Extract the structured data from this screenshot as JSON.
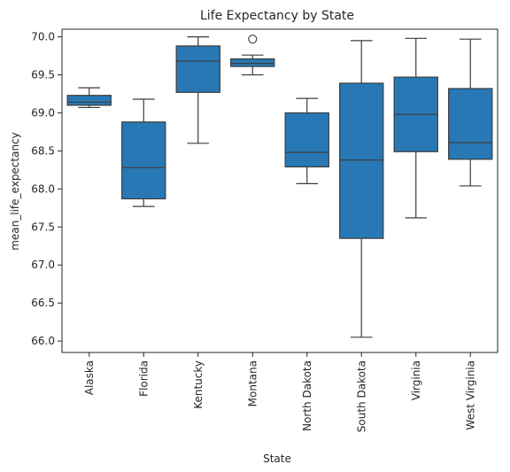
{
  "chart_data": {
    "type": "box",
    "title": "Life Expectancy by State",
    "xlabel": "State",
    "ylabel": "mean_life_expectancy",
    "ylim": [
      65.85,
      70.1
    ],
    "yticks": [
      "66.0",
      "66.5",
      "67.0",
      "67.5",
      "68.0",
      "68.5",
      "69.0",
      "69.5",
      "70.0"
    ],
    "box_color": "#2878b5",
    "line_color": "#3d3d3d",
    "grid": false,
    "categories": [
      "Alaska",
      "Florida",
      "Kentucky",
      "Montana",
      "North Dakota",
      "South Dakota",
      "Virginia",
      "West Virginia"
    ],
    "boxes": [
      {
        "min": 69.07,
        "q1": 69.1,
        "median": 69.14,
        "q3": 69.23,
        "max": 69.33,
        "outliers": []
      },
      {
        "min": 67.77,
        "q1": 67.87,
        "median": 68.28,
        "q3": 68.88,
        "max": 69.18,
        "outliers": []
      },
      {
        "min": 68.6,
        "q1": 69.27,
        "median": 69.68,
        "q3": 69.88,
        "max": 70.0,
        "outliers": []
      },
      {
        "min": 69.5,
        "q1": 69.61,
        "median": 69.65,
        "q3": 69.71,
        "max": 69.76,
        "outliers": [
          69.97
        ]
      },
      {
        "min": 68.07,
        "q1": 68.29,
        "median": 68.48,
        "q3": 69.0,
        "max": 69.19,
        "outliers": []
      },
      {
        "min": 66.05,
        "q1": 67.35,
        "median": 68.38,
        "q3": 69.39,
        "max": 69.95,
        "outliers": []
      },
      {
        "min": 67.62,
        "q1": 68.49,
        "median": 68.98,
        "q3": 69.47,
        "max": 69.98,
        "outliers": []
      },
      {
        "min": 68.04,
        "q1": 68.39,
        "median": 68.61,
        "q3": 69.32,
        "max": 69.97,
        "outliers": []
      }
    ]
  }
}
